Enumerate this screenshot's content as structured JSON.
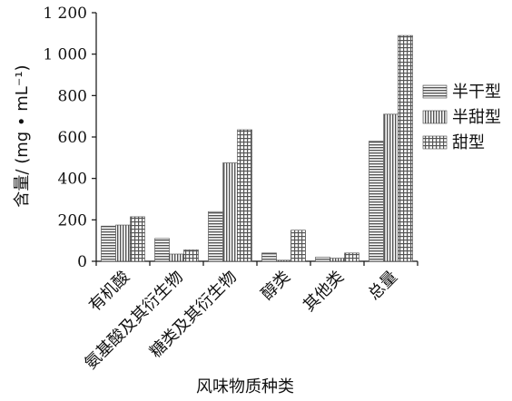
{
  "chart_data": {
    "type": "bar",
    "title": "",
    "xlabel": "风味物质种类",
    "ylabel": "含量/ (mg • mL⁻¹)",
    "ylim": [
      0,
      1200
    ],
    "yticks": [
      "0",
      "200",
      "400",
      "600",
      "800",
      "1 000",
      "1 200"
    ],
    "categories": [
      "有机酸",
      "氨基酸及其衍生物",
      "糖类及其衍生物",
      "醇类",
      "其他类",
      "总量"
    ],
    "series": [
      {
        "name": "半干型",
        "pattern": "horizontal-lines",
        "values": [
          170,
          110,
          240,
          40,
          20,
          580
        ]
      },
      {
        "name": "半甜型",
        "pattern": "vertical-lines",
        "values": [
          175,
          35,
          475,
          5,
          15,
          710
        ]
      },
      {
        "name": "甜型",
        "pattern": "grid",
        "values": [
          215,
          55,
          635,
          150,
          40,
          1090
        ]
      }
    ],
    "legend_position": "right",
    "grid": false
  }
}
